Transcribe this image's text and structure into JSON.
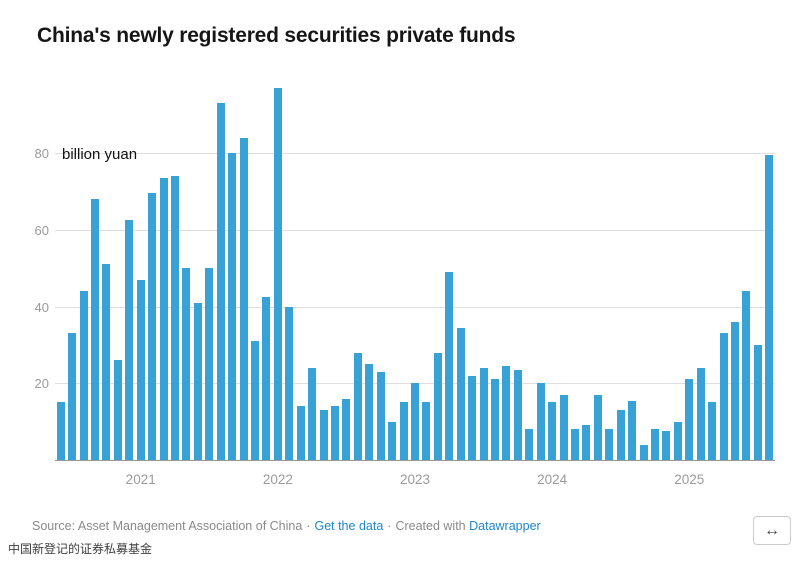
{
  "header": {
    "title": "China's newly registered securities private funds"
  },
  "chart_data": {
    "type": "bar",
    "title": "China's newly registered securities private funds",
    "unit_label": "billion yuan",
    "ylabel": "billion yuan",
    "xlabel": "",
    "ylim": [
      0,
      98
    ],
    "yticks": [
      20,
      40,
      60,
      80
    ],
    "grid": true,
    "bar_color": "#38a1d6",
    "frequency": "monthly",
    "values": [
      15,
      33,
      44,
      68,
      51,
      26,
      62.5,
      47,
      69.5,
      73.5,
      74,
      50,
      41,
      50,
      93,
      80,
      84,
      31,
      42.5,
      97,
      40,
      14,
      24,
      13,
      14,
      16,
      28,
      25,
      23,
      10,
      15,
      20,
      15,
      28,
      49,
      34.5,
      22,
      24,
      21,
      24.5,
      23.5,
      8,
      20,
      15,
      17,
      8,
      9,
      17,
      8,
      13,
      15.5,
      4,
      8,
      7.5,
      10,
      21,
      24,
      15,
      33,
      36,
      44,
      30,
      79.5
    ],
    "year_ticks": [
      {
        "label": "2021",
        "index": 7
      },
      {
        "label": "2022",
        "index": 19
      },
      {
        "label": "2023",
        "index": 31
      },
      {
        "label": "2024",
        "index": 43
      },
      {
        "label": "2025",
        "index": 55
      }
    ]
  },
  "footer": {
    "source_text": "Source: Asset Management Association of China",
    "dot": "·",
    "get_data_label": "Get the data",
    "created_with_label": "Created with",
    "datawrapper_label": "Datawrapper",
    "link_color": "#1e87c9"
  },
  "caption": {
    "text": "中国新登记的证券私募基金"
  },
  "controls": {
    "resize_icon": "↔"
  },
  "colors": {
    "bar": "#38a1d6",
    "title": "#161616",
    "axis_text": "#9b9b9b",
    "gridline": "#dedede",
    "baseline": "#9a9a9a",
    "footer_text": "#8a8a8a",
    "link": "#1e87c9"
  }
}
